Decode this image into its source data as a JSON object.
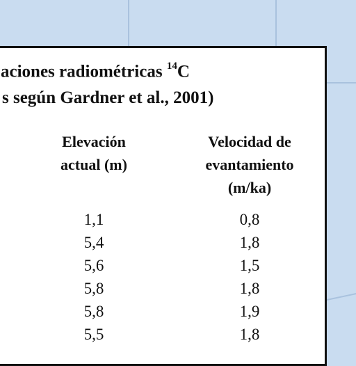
{
  "title": {
    "line1": "aciones radiométricas ",
    "line1_sup": "14",
    "line1_tail": "C",
    "line2": "s según Gardner et al., 2001)"
  },
  "columns": [
    {
      "lines": [
        "Elevación",
        "actual (m)"
      ]
    },
    {
      "lines": [
        "Velocidad de",
        "evantamiento",
        "(m/ka)"
      ]
    }
  ],
  "rows": [
    {
      "elevation": "1,1",
      "velocity": "0,8"
    },
    {
      "elevation": "5,4",
      "velocity": "1,8"
    },
    {
      "elevation": "5,6",
      "velocity": "1,5"
    },
    {
      "elevation": "5,8",
      "velocity": "1,8"
    },
    {
      "elevation": "5,8",
      "velocity": "1,9"
    },
    {
      "elevation": "5,5",
      "velocity": "1,8"
    }
  ]
}
